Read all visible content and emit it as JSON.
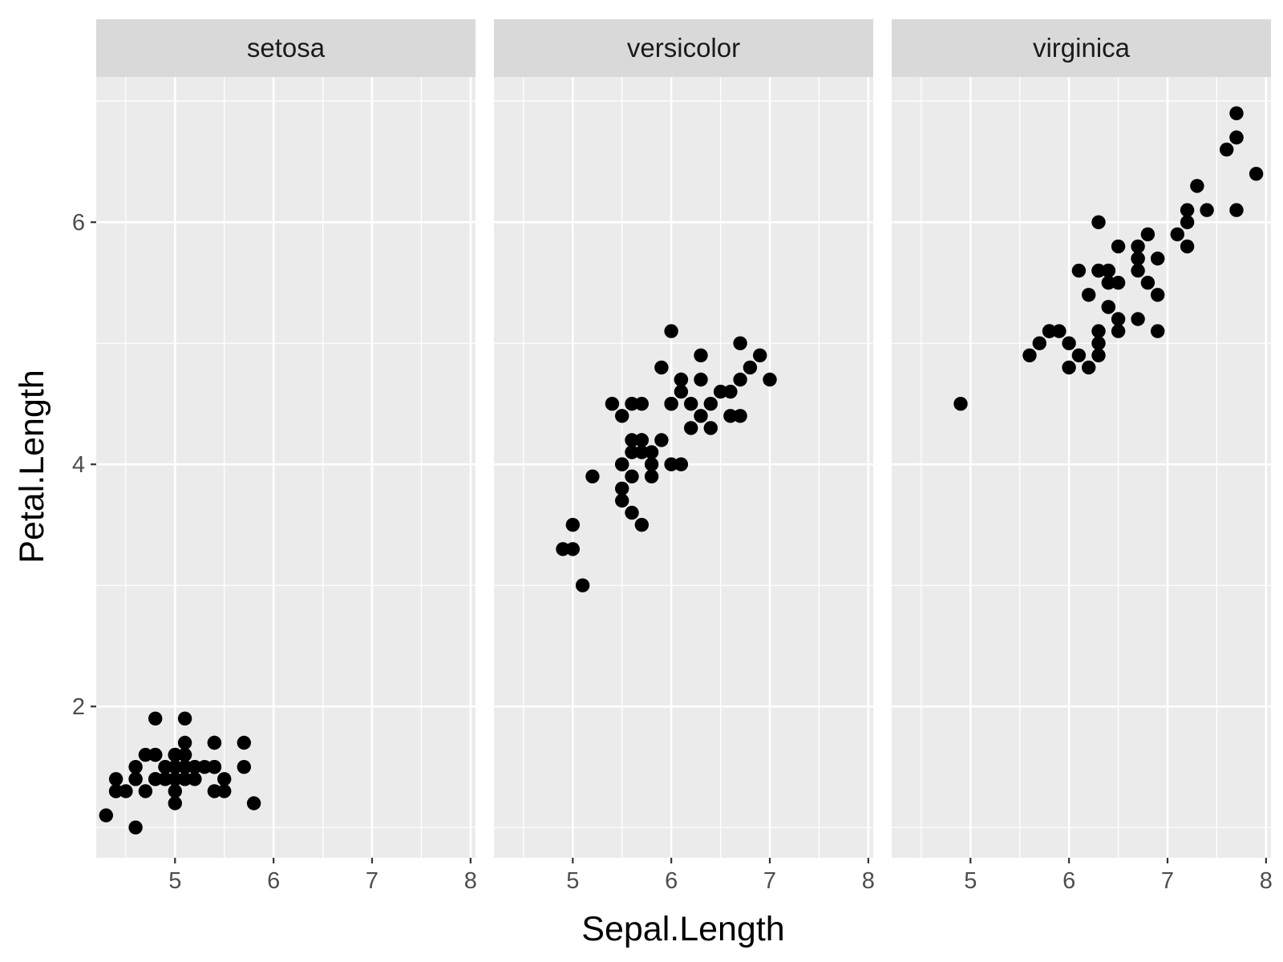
{
  "chart_data": {
    "type": "scatter",
    "facet_by": "Species",
    "xlabel": "Sepal.Length",
    "ylabel": "Petal.Length",
    "xlim": [
      4.2,
      8.05
    ],
    "ylim": [
      0.75,
      7.2
    ],
    "x_breaks": [
      5,
      6,
      7,
      8
    ],
    "x_tick_labels": [
      "5",
      "6",
      "7",
      "8"
    ],
    "y_breaks": [
      2,
      4,
      6
    ],
    "y_tick_labels": [
      "2",
      "4",
      "6"
    ],
    "grid": true,
    "colors": {
      "panel_bg": "#ebebeb",
      "strip_bg": "#d9d9d9",
      "grid": "#ffffff",
      "point": "#000000"
    },
    "panels": [
      {
        "title": "setosa",
        "points": [
          [
            5.1,
            1.4
          ],
          [
            4.9,
            1.4
          ],
          [
            4.7,
            1.3
          ],
          [
            4.6,
            1.5
          ],
          [
            5.0,
            1.4
          ],
          [
            5.4,
            1.7
          ],
          [
            4.6,
            1.4
          ],
          [
            5.0,
            1.5
          ],
          [
            4.4,
            1.4
          ],
          [
            4.9,
            1.5
          ],
          [
            5.4,
            1.5
          ],
          [
            4.8,
            1.6
          ],
          [
            4.8,
            1.4
          ],
          [
            4.3,
            1.1
          ],
          [
            5.8,
            1.2
          ],
          [
            5.7,
            1.5
          ],
          [
            5.4,
            1.3
          ],
          [
            5.1,
            1.4
          ],
          [
            5.7,
            1.7
          ],
          [
            5.1,
            1.5
          ],
          [
            5.4,
            1.7
          ],
          [
            5.1,
            1.5
          ],
          [
            4.6,
            1.0
          ],
          [
            5.1,
            1.7
          ],
          [
            4.8,
            1.9
          ],
          [
            5.0,
            1.6
          ],
          [
            5.0,
            1.6
          ],
          [
            5.2,
            1.5
          ],
          [
            5.2,
            1.4
          ],
          [
            4.7,
            1.6
          ],
          [
            4.8,
            1.6
          ],
          [
            5.4,
            1.5
          ],
          [
            5.2,
            1.5
          ],
          [
            5.5,
            1.4
          ],
          [
            4.9,
            1.5
          ],
          [
            5.0,
            1.2
          ],
          [
            5.5,
            1.3
          ],
          [
            4.9,
            1.4
          ],
          [
            4.4,
            1.3
          ],
          [
            5.1,
            1.5
          ],
          [
            5.0,
            1.3
          ],
          [
            4.5,
            1.3
          ],
          [
            4.4,
            1.3
          ],
          [
            5.0,
            1.6
          ],
          [
            5.1,
            1.9
          ],
          [
            4.8,
            1.4
          ],
          [
            5.1,
            1.6
          ],
          [
            4.6,
            1.4
          ],
          [
            5.3,
            1.5
          ],
          [
            5.0,
            1.4
          ]
        ]
      },
      {
        "title": "versicolor",
        "points": [
          [
            7.0,
            4.7
          ],
          [
            6.4,
            4.5
          ],
          [
            6.9,
            4.9
          ],
          [
            5.5,
            4.0
          ],
          [
            6.5,
            4.6
          ],
          [
            5.7,
            4.5
          ],
          [
            6.3,
            4.7
          ],
          [
            4.9,
            3.3
          ],
          [
            6.6,
            4.6
          ],
          [
            5.2,
            3.9
          ],
          [
            5.0,
            3.5
          ],
          [
            5.9,
            4.2
          ],
          [
            6.0,
            4.0
          ],
          [
            6.1,
            4.7
          ],
          [
            5.6,
            3.6
          ],
          [
            6.7,
            4.4
          ],
          [
            5.6,
            4.5
          ],
          [
            5.8,
            4.1
          ],
          [
            6.2,
            4.5
          ],
          [
            5.6,
            3.9
          ],
          [
            5.9,
            4.8
          ],
          [
            6.1,
            4.0
          ],
          [
            6.3,
            4.9
          ],
          [
            6.1,
            4.7
          ],
          [
            6.4,
            4.3
          ],
          [
            6.6,
            4.4
          ],
          [
            6.8,
            4.8
          ],
          [
            6.7,
            5.0
          ],
          [
            6.0,
            4.5
          ],
          [
            5.7,
            3.5
          ],
          [
            5.5,
            3.8
          ],
          [
            5.5,
            3.7
          ],
          [
            5.8,
            3.9
          ],
          [
            6.0,
            5.1
          ],
          [
            5.4,
            4.5
          ],
          [
            6.0,
            4.5
          ],
          [
            6.7,
            4.7
          ],
          [
            6.3,
            4.4
          ],
          [
            5.6,
            4.1
          ],
          [
            5.5,
            4.0
          ],
          [
            5.5,
            4.4
          ],
          [
            6.1,
            4.6
          ],
          [
            5.8,
            4.0
          ],
          [
            5.0,
            3.3
          ],
          [
            5.6,
            4.2
          ],
          [
            5.7,
            4.2
          ],
          [
            5.7,
            4.2
          ],
          [
            6.2,
            4.3
          ],
          [
            5.1,
            3.0
          ],
          [
            5.7,
            4.1
          ]
        ]
      },
      {
        "title": "virginica",
        "points": [
          [
            6.3,
            6.0
          ],
          [
            5.8,
            5.1
          ],
          [
            7.1,
            5.9
          ],
          [
            6.3,
            5.6
          ],
          [
            6.5,
            5.8
          ],
          [
            7.6,
            6.6
          ],
          [
            4.9,
            4.5
          ],
          [
            7.3,
            6.3
          ],
          [
            6.7,
            5.8
          ],
          [
            7.2,
            6.1
          ],
          [
            6.5,
            5.1
          ],
          [
            6.4,
            5.3
          ],
          [
            6.8,
            5.5
          ],
          [
            5.7,
            5.0
          ],
          [
            5.8,
            5.1
          ],
          [
            6.4,
            5.3
          ],
          [
            6.5,
            5.5
          ],
          [
            7.7,
            6.7
          ],
          [
            7.7,
            6.9
          ],
          [
            6.0,
            5.0
          ],
          [
            6.9,
            5.7
          ],
          [
            5.6,
            4.9
          ],
          [
            7.7,
            6.7
          ],
          [
            6.3,
            4.9
          ],
          [
            6.7,
            5.7
          ],
          [
            7.2,
            6.0
          ],
          [
            6.2,
            4.8
          ],
          [
            6.1,
            4.9
          ],
          [
            6.4,
            5.6
          ],
          [
            7.2,
            5.8
          ],
          [
            7.4,
            6.1
          ],
          [
            7.9,
            6.4
          ],
          [
            6.4,
            5.6
          ],
          [
            6.3,
            5.1
          ],
          [
            6.1,
            5.6
          ],
          [
            7.7,
            6.1
          ],
          [
            6.3,
            5.6
          ],
          [
            6.4,
            5.5
          ],
          [
            6.0,
            4.8
          ],
          [
            6.9,
            5.4
          ],
          [
            6.7,
            5.6
          ],
          [
            6.9,
            5.1
          ],
          [
            5.8,
            5.1
          ],
          [
            6.8,
            5.9
          ],
          [
            6.7,
            5.7
          ],
          [
            6.7,
            5.2
          ],
          [
            6.3,
            5.0
          ],
          [
            6.5,
            5.2
          ],
          [
            6.2,
            5.4
          ],
          [
            5.9,
            5.1
          ]
        ]
      }
    ]
  }
}
